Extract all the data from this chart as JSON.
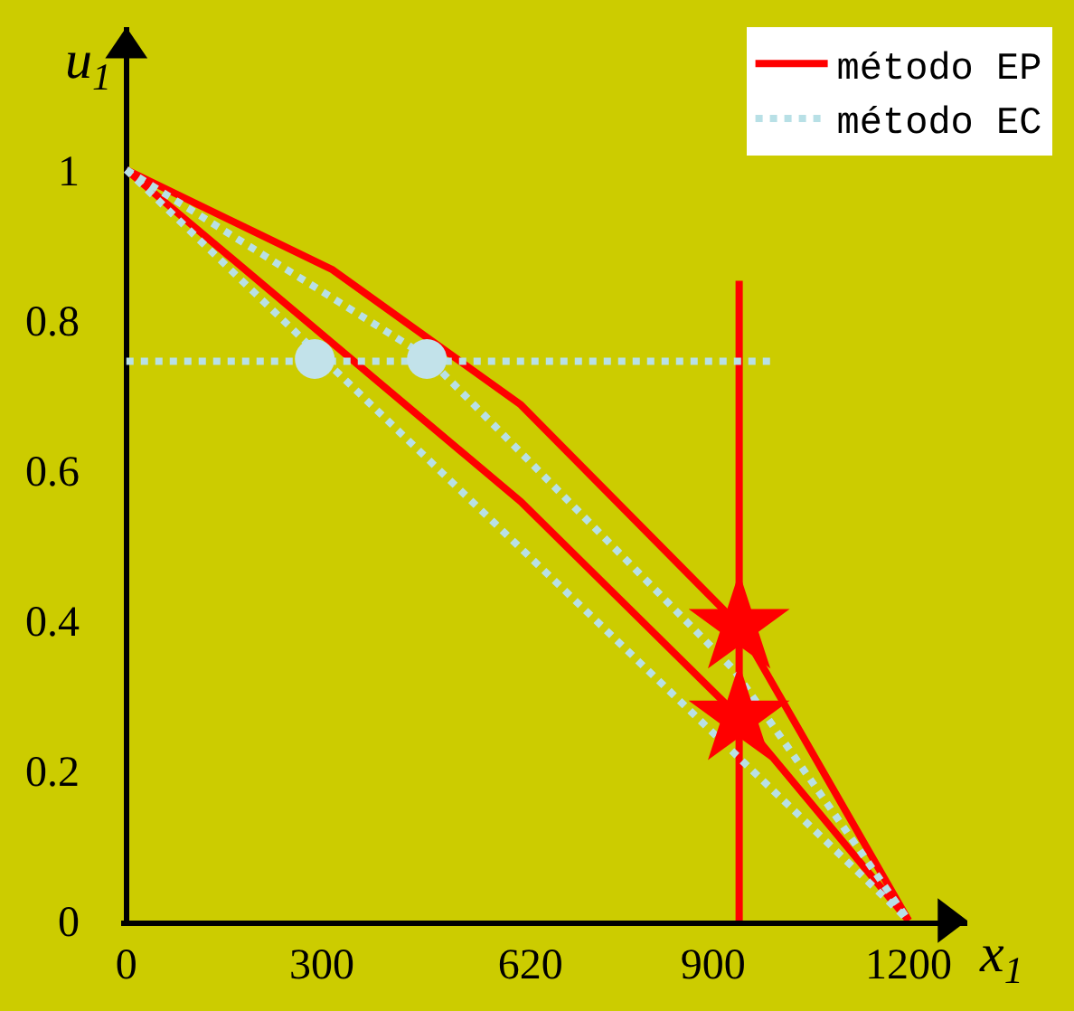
{
  "chart_data": {
    "type": "line",
    "xlabel": "x$_{1}$",
    "ylabel": "u$_{1}$",
    "xlim": [
      -8,
      1290
    ],
    "ylim": [
      0,
      1.19
    ],
    "xticks": [
      0,
      300,
      620,
      900,
      1200
    ],
    "yticks": [
      0,
      0.2,
      0.4,
      0.6,
      0.8,
      1
    ],
    "grid": false,
    "legend": "top right",
    "series": [
      {
        "name": "método EP",
        "color": "#ff0000",
        "line_style": "solid",
        "marker": "none",
        "x": [
          0,
          316,
          605,
          940,
          1200
        ],
        "values": [
          1,
          0.867,
          0.687,
          0.393,
          0
        ]
      },
      {
        "color": "#ff0000",
        "line_style": "solid",
        "marker": "none",
        "x": [
          0,
          605,
          940,
          1200
        ],
        "values": [
          1,
          0.558,
          0.271,
          0
        ]
      },
      {
        "color": "#ff0000",
        "line_style": "solid",
        "marker": "none",
        "x": [
          940,
          940
        ],
        "values": [
          0,
          0.852
        ]
      },
      {
        "name": "método EC",
        "color": "#b8e0e6",
        "line_style": "dotted",
        "marker": "none",
        "x": [
          0,
          461,
          932,
          1200
        ],
        "values": [
          1,
          0.751,
          0.334,
          0
        ]
      },
      {
        "color": "#b8e0e6",
        "line_style": "dotted",
        "marker": "none",
        "x": [
          0,
          1200
        ],
        "values": [
          1,
          0
        ]
      },
      {
        "color": "#b8e0e6",
        "line_style": "dotted",
        "marker": "none",
        "x": [
          0,
          991
        ],
        "values": [
          0.745,
          0.745
        ]
      },
      {
        "type": "scatter",
        "color": "#c2e2ea",
        "marker": "circle",
        "x": [
          289,
          461
        ],
        "values": [
          0.748,
          0.748
        ]
      },
      {
        "type": "scatter",
        "color": "#ff0000",
        "marker": "star",
        "x": [
          940,
          940
        ],
        "values": [
          0.393,
          0.271
        ]
      }
    ]
  }
}
